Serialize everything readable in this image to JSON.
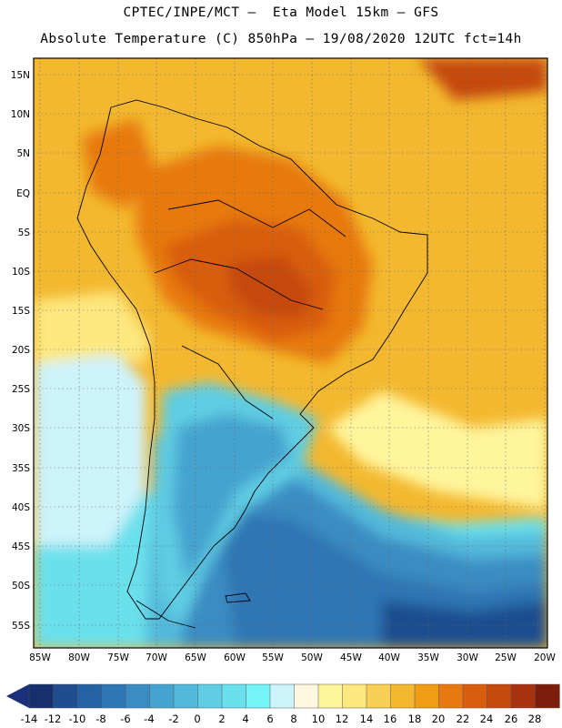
{
  "header": {
    "line1": "CPTEC/INPE/MCT –  Eta Model 15km – GFS",
    "line2": "Absolute Temperature (C) 850hPa – 19/08/2020 12UTC fct=14h"
  },
  "axes": {
    "lat_labels": [
      "15N",
      "10N",
      "5N",
      "EQ",
      "5S",
      "10S",
      "15S",
      "20S",
      "25S",
      "30S",
      "35S",
      "40S",
      "45S",
      "50S",
      "55S"
    ],
    "lon_labels": [
      "85W",
      "80W",
      "75W",
      "70W",
      "65W",
      "60W",
      "55W",
      "50W",
      "45W",
      "40W",
      "35W",
      "30W",
      "25W",
      "20W"
    ]
  },
  "colorbar": {
    "labels": [
      "-14",
      "-12",
      "-10",
      "-8",
      "-6",
      "-4",
      "-2",
      "0",
      "2",
      "4",
      "6",
      "8",
      "10",
      "12",
      "14",
      "16",
      "18",
      "20",
      "22",
      "24",
      "26",
      "28"
    ],
    "colors": [
      "#17306b",
      "#1f4d8f",
      "#2462a3",
      "#2e76b4",
      "#3a8cc3",
      "#45a3cf",
      "#53b9da",
      "#5fcde3",
      "#6ae0ec",
      "#76f3f6",
      "#cdf3fb",
      "#fff8e1",
      "#fff59d",
      "#fde77f",
      "#f8cf55",
      "#f3b82f",
      "#f09d16",
      "#e77910",
      "#d85d0e",
      "#c54a10",
      "#a8320f",
      "#7d1e0c"
    ],
    "low_arrow": "#1b2f7a",
    "high_arrow": "#8c0d2a"
  }
}
